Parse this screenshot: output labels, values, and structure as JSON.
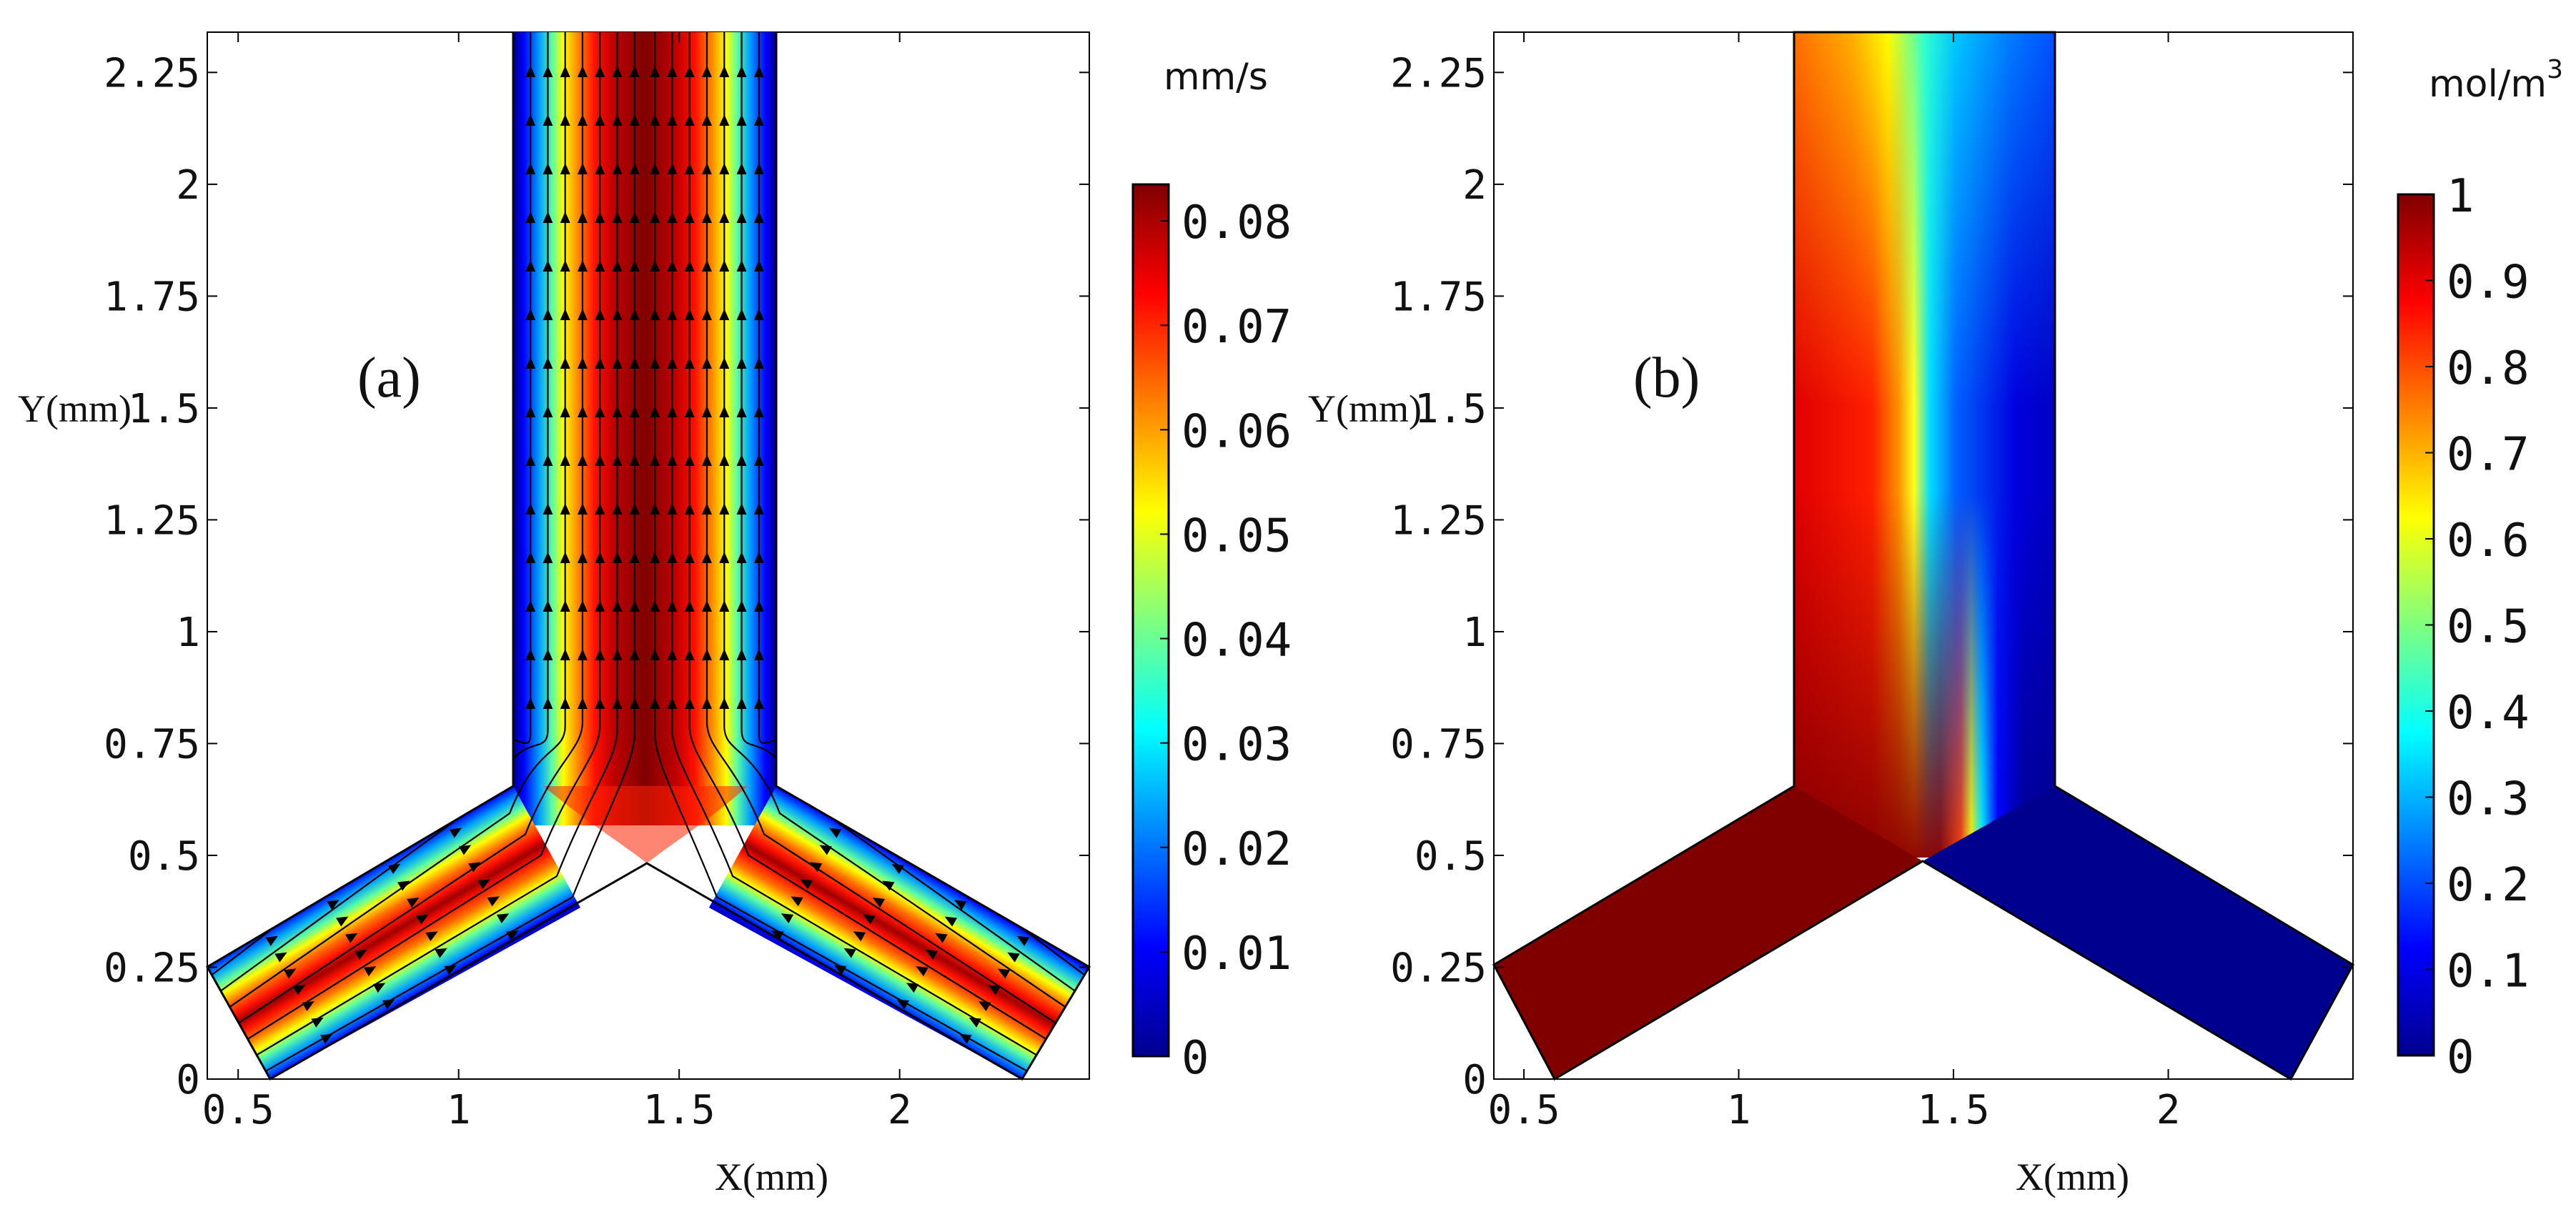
{
  "chart_data": [
    {
      "type": "heatmap",
      "panel_label": "(a)",
      "title": "",
      "quantity": "velocity magnitude with streamlines",
      "xlabel": "X(mm)",
      "ylabel": "Y(mm)",
      "xlim": [
        0.43,
        2.43
      ],
      "ylim": [
        0,
        2.34
      ],
      "x_ticks": [
        "0.5",
        "1",
        "1.5",
        "2"
      ],
      "x_tick_values": [
        0.5,
        1,
        1.5,
        2
      ],
      "y_ticks": [
        "0",
        "0.25",
        "0.5",
        "0.75",
        "1",
        "1.25",
        "1.5",
        "1.75",
        "2",
        "2.25"
      ],
      "y_tick_values": [
        0,
        0.25,
        0.5,
        0.75,
        1,
        1.25,
        1.5,
        1.75,
        2,
        2.25
      ],
      "colorbar": {
        "unit": "mm/s",
        "range": [
          0,
          0.0835
        ],
        "ticks": [
          "0",
          "0.01",
          "0.02",
          "0.03",
          "0.04",
          "0.05",
          "0.06",
          "0.07",
          "0.08"
        ],
        "tick_values": [
          0,
          0.01,
          0.02,
          0.03,
          0.04,
          0.05,
          0.06,
          0.07,
          0.08
        ],
        "colormap": "jet"
      },
      "geometry": {
        "junction_outer_left": [
          1.13,
          0.65
        ],
        "junction_outer_right": [
          1.72,
          0.65
        ],
        "junction_inner": [
          1.43,
          0.48
        ],
        "left_inlet": [
          [
            0.43,
            0.25
          ],
          [
            0.58,
            0.0
          ]
        ],
        "right_inlet": [
          [
            2.43,
            0.25
          ],
          [
            2.28,
            0.0
          ]
        ],
        "outlet_top": [
          [
            1.13,
            2.34
          ],
          [
            1.72,
            2.34
          ]
        ]
      }
    },
    {
      "type": "heatmap",
      "panel_label": "(b)",
      "title": "",
      "quantity": "concentration",
      "xlabel": "X(mm)",
      "ylabel": "Y(mm)",
      "xlim": [
        0.43,
        2.43
      ],
      "ylim": [
        0,
        2.34
      ],
      "x_ticks": [
        "0.5",
        "1",
        "1.5",
        "2"
      ],
      "x_tick_values": [
        0.5,
        1,
        1.5,
        2
      ],
      "y_ticks": [
        "0",
        "0.25",
        "0.5",
        "0.75",
        "1",
        "1.25",
        "1.5",
        "1.75",
        "2",
        "2.25"
      ],
      "y_tick_values": [
        0,
        0.25,
        0.5,
        0.75,
        1,
        1.25,
        1.5,
        1.75,
        2,
        2.25
      ],
      "colorbar": {
        "unit_base": "mol/m",
        "unit_exp": "3",
        "range": [
          0,
          1
        ],
        "ticks": [
          "0",
          "0.1",
          "0.2",
          "0.3",
          "0.4",
          "0.5",
          "0.6",
          "0.7",
          "0.8",
          "0.9",
          "1"
        ],
        "tick_values": [
          0,
          0.1,
          0.2,
          0.3,
          0.4,
          0.5,
          0.6,
          0.7,
          0.8,
          0.9,
          1
        ],
        "colormap": "jet"
      },
      "inlet_concentrations": {
        "left": 1,
        "right": 0
      }
    }
  ]
}
